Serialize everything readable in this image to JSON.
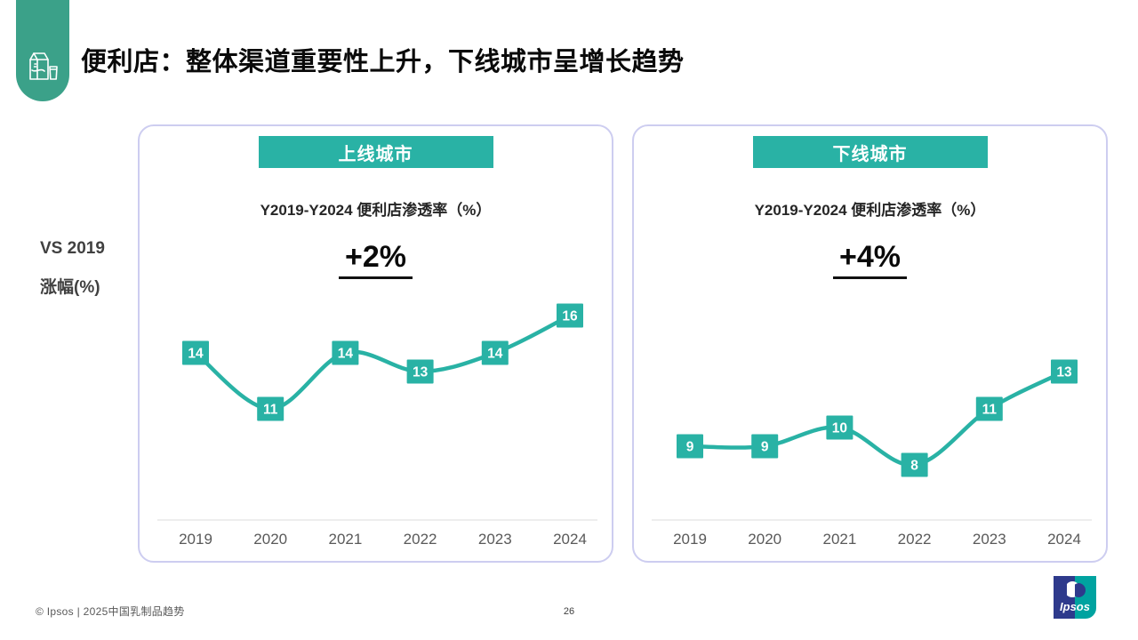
{
  "slide": {
    "title": "便利店：整体渠道重要性上升，下线城市呈增长趋势",
    "side_label": {
      "line1": "VS 2019",
      "line2": "涨幅(%)"
    },
    "footer": {
      "copyright": "© Ipsos | 2025中国乳制品趋势",
      "page_number": "26",
      "logo_text": "Ipsos"
    }
  },
  "colors": {
    "teal": "#29B2A5",
    "pill_green": "#3BA189",
    "card_border": "#CDCDF0",
    "axis_gray": "#DCDCDC",
    "tick_gray": "#595959",
    "logo_blue": "#2E3A8C",
    "logo_teal": "#00A3A0"
  },
  "chart_data": [
    {
      "type": "line",
      "header": "上线城市",
      "title": "Y2019-Y2024 便利店渗透率（%）",
      "delta_label": "+2%",
      "categories": [
        "2019",
        "2020",
        "2021",
        "2022",
        "2023",
        "2024"
      ],
      "values": [
        14,
        11,
        14,
        13,
        14,
        16
      ],
      "ylim": [
        0,
        18
      ],
      "line_color": "#29B2A5",
      "data_labels": true,
      "legend": "none",
      "grid": false
    },
    {
      "type": "line",
      "header": "下线城市",
      "title": "Y2019-Y2024 便利店渗透率（%）",
      "delta_label": "+4%",
      "categories": [
        "2019",
        "2020",
        "2021",
        "2022",
        "2023",
        "2024"
      ],
      "values": [
        9,
        9,
        10,
        8,
        11,
        13
      ],
      "ylim": [
        0,
        18
      ],
      "line_color": "#29B2A5",
      "data_labels": true,
      "legend": "none",
      "grid": false
    }
  ]
}
